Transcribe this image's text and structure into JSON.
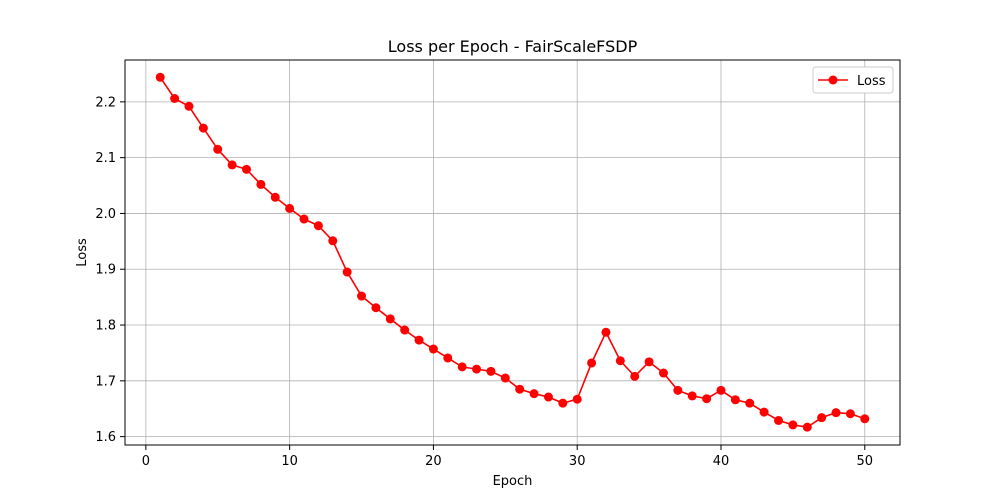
{
  "chart_data": {
    "type": "line",
    "title": "Loss per Epoch - FairScaleFSDP",
    "xlabel": "Epoch",
    "ylabel": "Loss",
    "xlim": [
      -1.45,
      52.45
    ],
    "ylim": [
      1.585,
      2.275
    ],
    "xticks": [
      0,
      10,
      20,
      30,
      40,
      50
    ],
    "yticks": [
      1.6,
      1.7,
      1.8,
      1.9,
      2.0,
      2.1,
      2.2
    ],
    "xtick_labels": [
      "0",
      "10",
      "20",
      "30",
      "40",
      "50"
    ],
    "ytick_labels": [
      "1.6",
      "1.7",
      "1.8",
      "1.9",
      "2.0",
      "2.1",
      "2.2"
    ],
    "grid": true,
    "legend_position": "top-right",
    "series": [
      {
        "name": "Loss",
        "color": "#ff0000",
        "marker": "circle",
        "x": [
          1,
          2,
          3,
          4,
          5,
          6,
          7,
          8,
          9,
          10,
          11,
          12,
          13,
          14,
          15,
          16,
          17,
          18,
          19,
          20,
          21,
          22,
          23,
          24,
          25,
          26,
          27,
          28,
          29,
          30,
          31,
          32,
          33,
          34,
          35,
          36,
          37,
          38,
          39,
          40,
          41,
          42,
          43,
          44,
          45,
          46,
          47,
          48,
          49,
          50
        ],
        "values": [
          2.244,
          2.206,
          2.192,
          2.153,
          2.115,
          2.087,
          2.079,
          2.052,
          2.029,
          2.009,
          1.99,
          1.978,
          1.951,
          1.895,
          1.852,
          1.831,
          1.811,
          1.791,
          1.773,
          1.757,
          1.741,
          1.725,
          1.721,
          1.717,
          1.705,
          1.685,
          1.677,
          1.671,
          1.66,
          1.667,
          1.732,
          1.787,
          1.736,
          1.708,
          1.734,
          1.714,
          1.683,
          1.673,
          1.668,
          1.683,
          1.666,
          1.66,
          1.644,
          1.629,
          1.621,
          1.617,
          1.634,
          1.643,
          1.641,
          1.632
        ]
      }
    ]
  }
}
